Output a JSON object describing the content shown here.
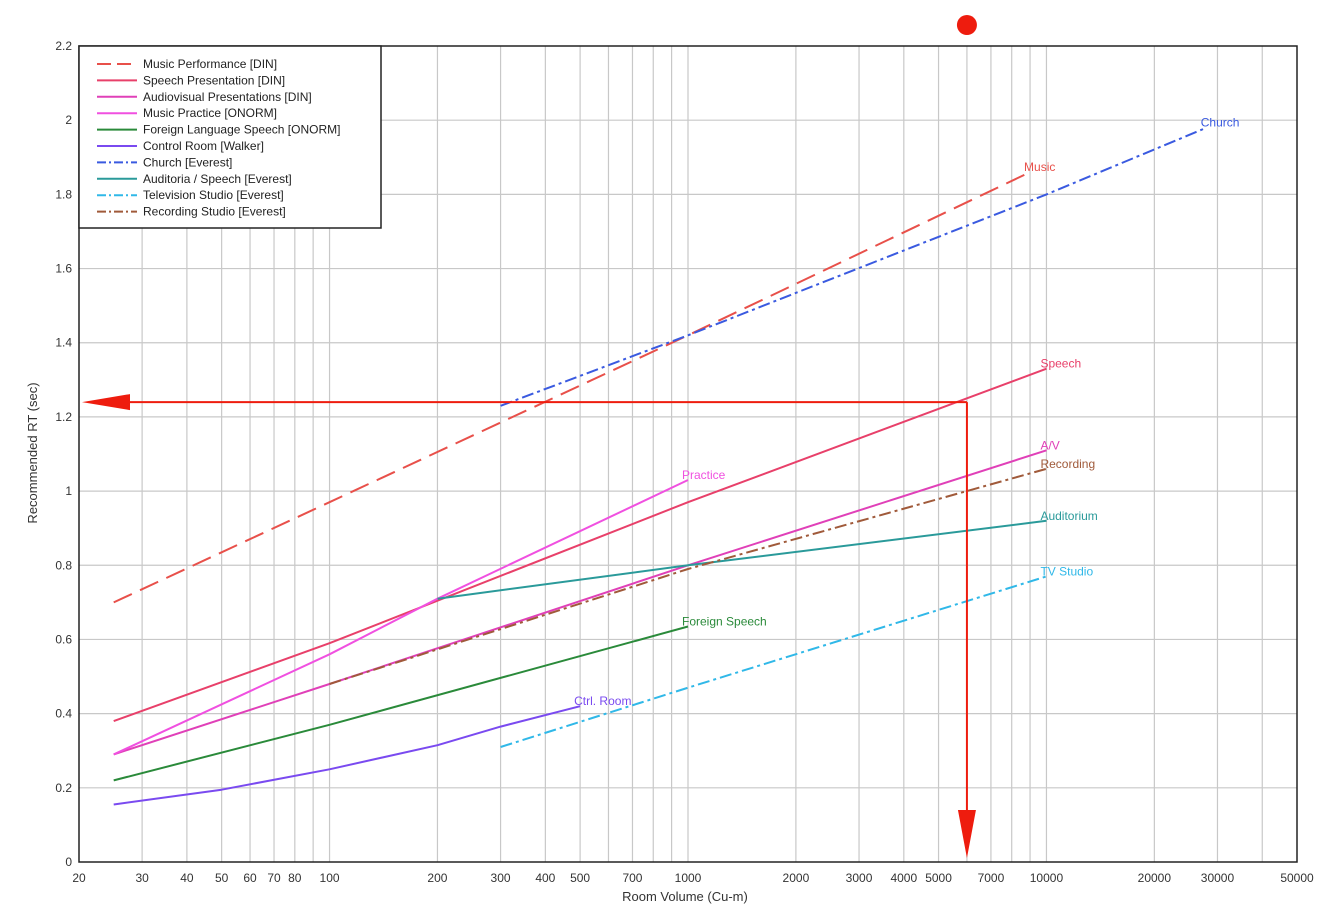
{
  "chart_data": {
    "type": "line",
    "title": "",
    "xlabel": "Room Volume (Cu-m)",
    "ylabel": "Recommended RT (sec)",
    "x_scale": "log",
    "xlim": [
      20,
      50000
    ],
    "ylim": [
      0,
      2.2
    ],
    "grid": true,
    "legend_position": "top-left",
    "x_ticks": [
      20,
      30,
      40,
      50,
      60,
      70,
      80,
      100,
      200,
      300,
      400,
      500,
      700,
      1000,
      2000,
      3000,
      4000,
      5000,
      7000,
      10000,
      20000,
      30000,
      50000
    ],
    "x_tick_labels": [
      "20",
      "30",
      "40",
      "50",
      "60",
      "70",
      "80",
      "100",
      "200",
      "300",
      "400",
      "500",
      "700",
      "1000",
      "2000",
      "3000",
      "4000",
      "5000",
      "7000",
      "10000",
      "20000",
      "30000",
      "50000"
    ],
    "y_ticks": [
      0,
      0.2,
      0.4,
      0.6,
      0.8,
      1,
      1.2,
      1.4,
      1.6,
      1.8,
      2,
      2.2
    ],
    "y_tick_labels": [
      "0",
      "0.2",
      "0.4",
      "0.6",
      "0.8",
      "1",
      "1.2",
      "1.4",
      "1.6",
      "1.8",
      "2",
      "2.2"
    ],
    "series": [
      {
        "name": "Music Performance [DIN]",
        "label": "Music",
        "color": "#e8504a",
        "dash": "long-dash",
        "points": [
          [
            25,
            0.7
          ],
          [
            100,
            0.97
          ],
          [
            1000,
            1.42
          ],
          [
            9000,
            1.86
          ]
        ]
      },
      {
        "name": "Speech Presentation [DIN]",
        "label": "Speech",
        "color": "#e8406a",
        "dash": "solid",
        "points": [
          [
            25,
            0.38
          ],
          [
            100,
            0.59
          ],
          [
            1000,
            0.97
          ],
          [
            10000,
            1.33
          ]
        ]
      },
      {
        "name": "Audiovisual Presentations [DIN]",
        "label": "A/V",
        "color": "#e040b8",
        "dash": "solid",
        "points": [
          [
            25,
            0.29
          ],
          [
            100,
            0.48
          ],
          [
            1000,
            0.8
          ],
          [
            10000,
            1.11
          ]
        ]
      },
      {
        "name": "Music Practice [ONORM]",
        "label": "Practice",
        "color": "#f050e0",
        "dash": "solid",
        "points": [
          [
            25,
            0.29
          ],
          [
            100,
            0.56
          ],
          [
            200,
            0.71
          ],
          [
            1000,
            1.03
          ]
        ]
      },
      {
        "name": "Foreign Language Speech [ONORM]",
        "label": "Foreign Speech",
        "color": "#2a8a3a",
        "dash": "solid",
        "points": [
          [
            25,
            0.22
          ],
          [
            100,
            0.37
          ],
          [
            1000,
            0.635
          ]
        ]
      },
      {
        "name": "Control Room [Walker]",
        "label": "Ctrl. Room",
        "color": "#7a4af0",
        "dash": "solid",
        "points": [
          [
            25,
            0.155
          ],
          [
            50,
            0.195
          ],
          [
            100,
            0.25
          ],
          [
            200,
            0.315
          ],
          [
            300,
            0.365
          ],
          [
            500,
            0.42
          ]
        ]
      },
      {
        "name": "Church [Everest]",
        "label": "Church",
        "color": "#3a5ae0",
        "dash": "dash-dot",
        "points": [
          [
            300,
            1.23
          ],
          [
            1000,
            1.42
          ],
          [
            10000,
            1.8
          ],
          [
            28000,
            1.98
          ]
        ]
      },
      {
        "name": "Auditoria / Speech [Everest]",
        "label": "Auditorium",
        "color": "#2a9a9a",
        "dash": "solid",
        "points": [
          [
            200,
            0.71
          ],
          [
            1000,
            0.8
          ],
          [
            10000,
            0.92
          ]
        ]
      },
      {
        "name": "Television Studio [Everest]",
        "label": "TV Studio",
        "color": "#30b8e8",
        "dash": "dash-dot",
        "points": [
          [
            300,
            0.31
          ],
          [
            1000,
            0.47
          ],
          [
            10000,
            0.77
          ]
        ]
      },
      {
        "name": "Recording Studio [Everest]",
        "label": "Recording",
        "color": "#a05a3a",
        "dash": "dash-dot",
        "points": [
          [
            100,
            0.48
          ],
          [
            1000,
            0.79
          ],
          [
            10000,
            1.06
          ]
        ]
      }
    ],
    "annotation": {
      "x": 6000,
      "y": 1.24,
      "color": "#ee1c0e",
      "marker": "dot"
    }
  }
}
